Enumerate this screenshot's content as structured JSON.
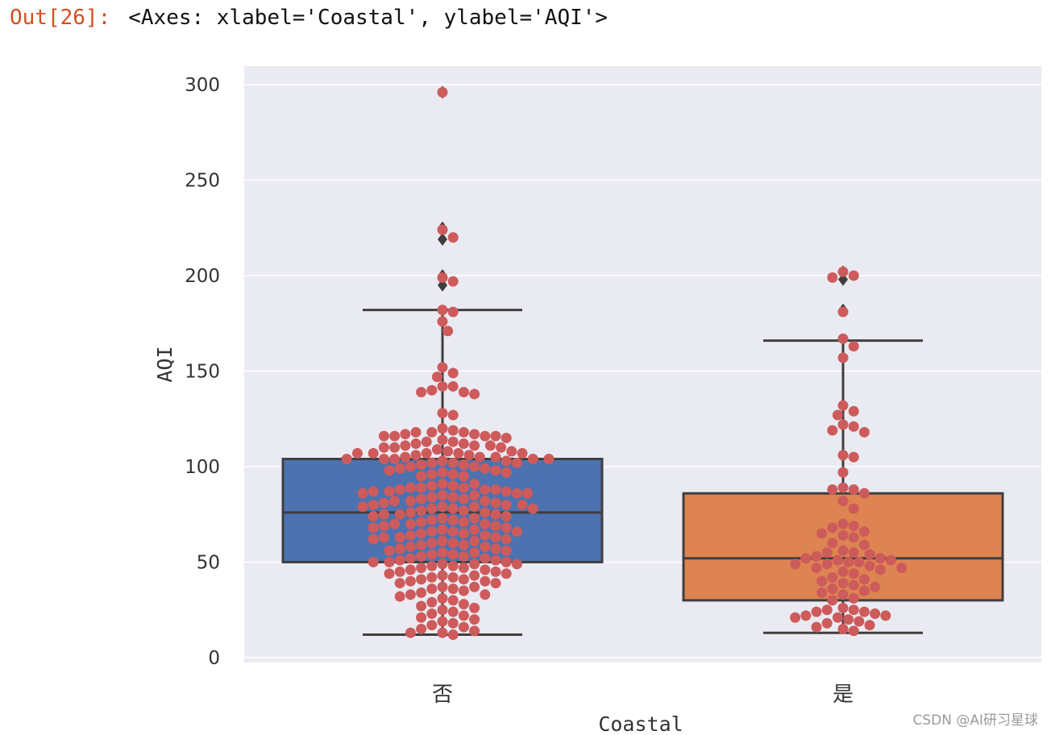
{
  "cell": {
    "prompt": "Out[26]:",
    "output_text": "<Axes: xlabel='Coastal', ylabel='AQI'>"
  },
  "watermark": "CSDN @AI研习星球",
  "chart_data": {
    "type": "box",
    "overlay": "swarm",
    "xlabel": "Coastal",
    "ylabel": "AQI",
    "categories": [
      "否",
      "是"
    ],
    "ylim": [
      -5,
      310
    ],
    "yticks": [
      0,
      50,
      100,
      150,
      200,
      250,
      300
    ],
    "grid": true,
    "colors": {
      "background": "#eaeaf2",
      "grid": "#ffffff",
      "box": [
        "#4c72b0",
        "#dd8452"
      ],
      "box_edge": "#3f3f3f",
      "swarm_point": "#cd5b5b",
      "outlier_marker": "#3f3f3f",
      "tick_label": "#333333"
    },
    "boxes": [
      {
        "category": "否",
        "q1": 50,
        "median": 76,
        "q3": 104,
        "whisker_low": 12,
        "whisker_high": 182,
        "outliers": [
          296,
          225,
          219,
          200,
          195
        ]
      },
      {
        "category": "是",
        "q1": 30,
        "median": 52,
        "q3": 86,
        "whisker_low": 13,
        "whisker_high": 166,
        "outliers": [
          202,
          198,
          182
        ]
      }
    ],
    "swarm_values": [
      [
        296,
        224,
        220,
        199,
        197,
        182,
        181,
        176,
        171,
        152,
        149,
        147,
        142,
        142,
        140,
        139,
        139,
        138,
        128,
        127,
        120,
        119,
        118,
        118,
        118,
        117,
        117,
        116,
        116,
        116,
        116,
        115,
        114,
        113,
        113,
        112,
        112,
        111,
        111,
        111,
        110,
        110,
        110,
        109,
        108,
        108,
        107,
        107,
        107,
        107,
        107,
        106,
        106,
        105,
        105,
        105,
        104,
        104,
        104,
        104,
        104,
        103,
        103,
        102,
        102,
        102,
        101,
        101,
        100,
        100,
        99,
        99,
        98,
        98,
        97,
        97,
        96,
        96,
        95,
        95,
        91,
        91,
        90,
        90,
        89,
        89,
        89,
        88,
        88,
        88,
        87,
        87,
        87,
        86,
        86,
        86,
        85,
        85,
        84,
        84,
        83,
        83,
        82,
        82,
        82,
        81,
        81,
        80,
        80,
        80,
        79,
        79,
        79,
        78,
        78,
        78,
        77,
        77,
        76,
        76,
        75,
        75,
        75,
        74,
        74,
        73,
        73,
        72,
        72,
        71,
        71,
        70,
        70,
        70,
        69,
        69,
        68,
        68,
        67,
        67,
        66,
        66,
        66,
        65,
        65,
        64,
        64,
        63,
        63,
        63,
        62,
        62,
        61,
        61,
        60,
        60,
        59,
        59,
        58,
        58,
        57,
        57,
        56,
        56,
        55,
        55,
        54,
        54,
        53,
        53,
        52,
        52,
        51,
        51,
        50,
        50,
        50,
        49,
        49,
        49,
        48,
        48,
        47,
        47,
        46,
        46,
        45,
        45,
        44,
        44,
        43,
        43,
        42,
        42,
        41,
        41,
        40,
        40,
        39,
        39,
        37,
        37,
        36,
        36,
        35,
        34,
        33,
        33,
        32,
        31,
        30,
        29,
        28,
        27,
        26,
        25,
        24,
        23,
        22,
        21,
        20,
        19,
        18,
        17,
        16,
        15,
        14,
        13,
        13,
        12
      ],
      [
        202,
        200,
        199,
        181,
        167,
        163,
        157,
        132,
        129,
        127,
        122,
        121,
        119,
        118,
        106,
        105,
        97,
        89,
        88,
        88,
        86,
        82,
        78,
        70,
        69,
        68,
        66,
        65,
        64,
        63,
        60,
        59,
        56,
        55,
        55,
        54,
        53,
        52,
        52,
        51,
        51,
        50,
        50,
        49,
        49,
        48,
        47,
        47,
        46,
        45,
        44,
        42,
        41,
        40,
        39,
        38,
        37,
        36,
        35,
        34,
        33,
        31,
        30,
        26,
        25,
        25,
        24,
        24,
        23,
        22,
        22,
        21,
        21,
        20,
        19,
        18,
        17,
        16,
        15,
        14
      ]
    ]
  }
}
